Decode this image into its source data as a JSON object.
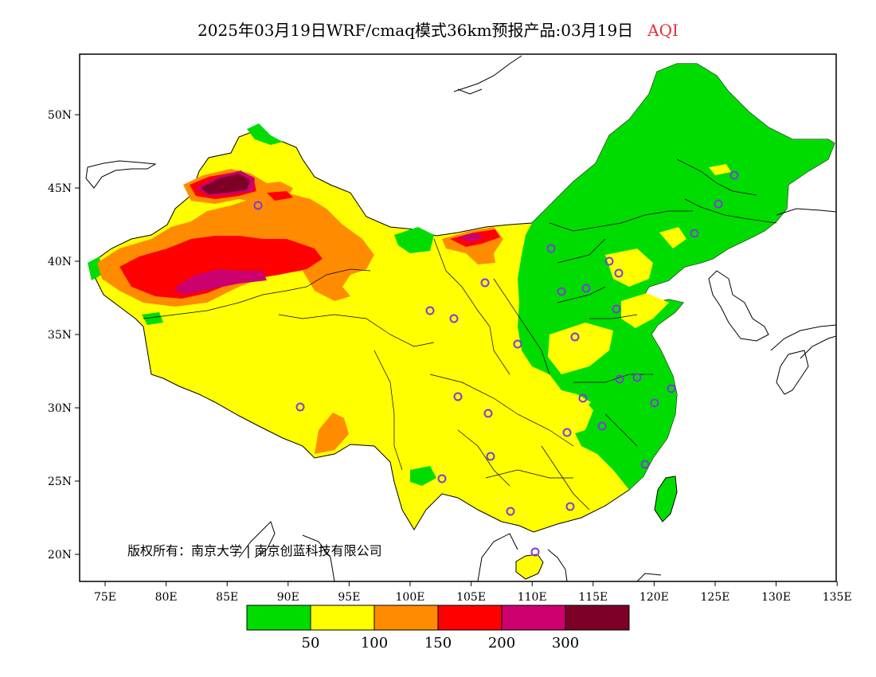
{
  "header": {
    "title": "2025年03月19日WRF/cmaq模式36km预报产品:03月19日",
    "variable": "AQI"
  },
  "map": {
    "lon_labels": [
      "75E",
      "80E",
      "85E",
      "90E",
      "95E",
      "100E",
      "105E",
      "110E",
      "115E",
      "120E",
      "125E",
      "130E",
      "135E"
    ],
    "lat_labels": [
      "50N",
      "45N",
      "40N",
      "35N",
      "30N",
      "25N",
      "20N"
    ],
    "copyright": "版权所有：南京大学 | 南京创蓝科技有限公司",
    "colors": {
      "good": "#00dc00",
      "moderate": "#ffff00",
      "usg": "#ff8c00",
      "unhealthy": "#ff0000",
      "very_unhealthy": "#cc006e",
      "hazardous": "#7d0026",
      "station_marker": "#7b3fd6"
    }
  },
  "legend": {
    "colors": [
      "#00dc00",
      "#ffff00",
      "#ff8c00",
      "#ff0000",
      "#cc006e",
      "#7d0026"
    ],
    "labels": [
      "50",
      "100",
      "150",
      "200",
      "300"
    ]
  }
}
